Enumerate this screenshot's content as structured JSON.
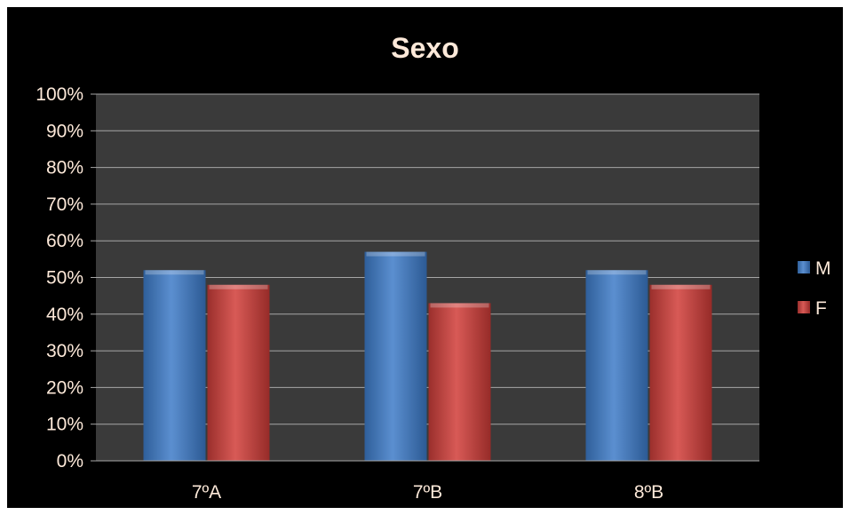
{
  "chart_data": {
    "type": "bar",
    "title": "Sexo",
    "categories": [
      "7ºA",
      "7ºB",
      "8ºB"
    ],
    "series": [
      {
        "name": "M",
        "values": [
          52,
          57,
          52
        ],
        "color": "#4f81bd"
      },
      {
        "name": "F",
        "values": [
          48,
          43,
          48
        ],
        "color": "#c0504d"
      }
    ],
    "ylim": [
      0,
      100
    ],
    "yticks": [
      "0%",
      "10%",
      "20%",
      "30%",
      "40%",
      "50%",
      "60%",
      "70%",
      "80%",
      "90%",
      "100%"
    ],
    "grid": true,
    "legend_position": "right",
    "colors": {
      "background": "#000000",
      "plot_area": "#3a3a3a",
      "gridline": "#a6a6a6",
      "text": "#fde9d9"
    }
  }
}
